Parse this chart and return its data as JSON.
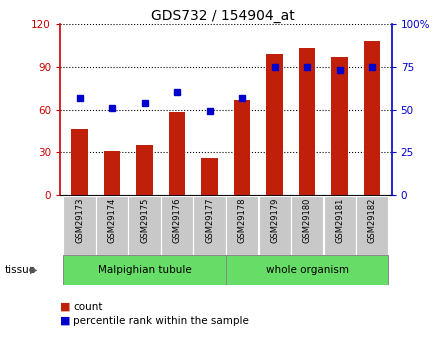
{
  "title": "GDS732 / 154904_at",
  "categories": [
    "GSM29173",
    "GSM29174",
    "GSM29175",
    "GSM29176",
    "GSM29177",
    "GSM29178",
    "GSM29179",
    "GSM29180",
    "GSM29181",
    "GSM29182"
  ],
  "count_values": [
    46,
    31,
    35,
    58,
    26,
    67,
    99,
    103,
    97,
    108
  ],
  "percentile_values": [
    57,
    51,
    54,
    60,
    49,
    57,
    75,
    75,
    73,
    75
  ],
  "bar_color": "#C0200A",
  "dot_color": "#0000CC",
  "ylim_left": [
    0,
    120
  ],
  "ylim_right": [
    0,
    100
  ],
  "yticks_left": [
    0,
    30,
    60,
    90,
    120
  ],
  "yticks_right": [
    0,
    25,
    50,
    75,
    100
  ],
  "tick_label_color_left": "#CC0000",
  "tick_label_color_right": "#0000CC",
  "background_xtick": "#C8C8C8",
  "tissue_color": "#66DD66",
  "legend_count": "count",
  "legend_percentile": "percentile rank within the sample",
  "bar_width": 0.5
}
